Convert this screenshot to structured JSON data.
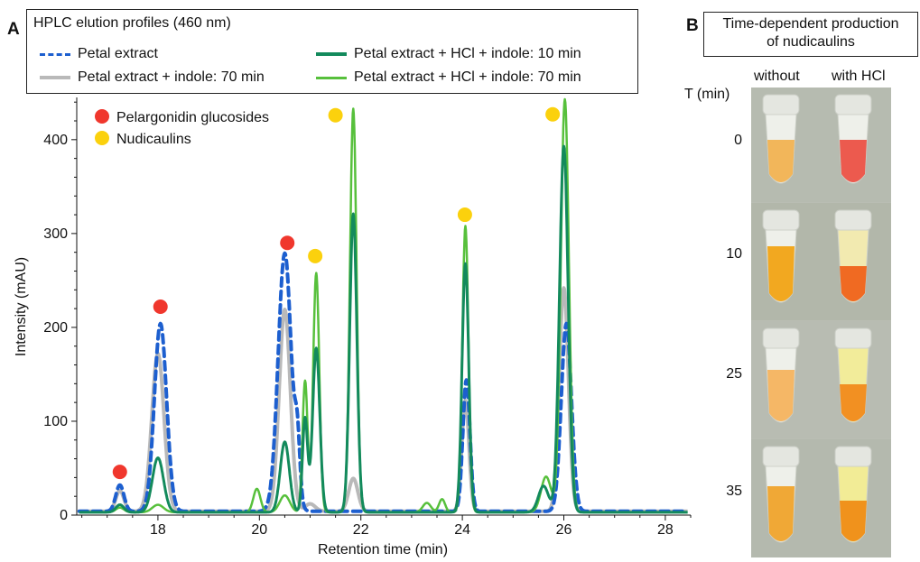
{
  "panel_a": {
    "letter": "A",
    "legend_title": "HPLC elution profiles (460 nm)",
    "legend": [
      {
        "label": "Petal extract",
        "color": "#1d5fcf",
        "dash": true
      },
      {
        "label": "Petal extract + indole: 70 min",
        "color": "#b9b9b9",
        "dash": false
      },
      {
        "label": "Petal extract + HCl + indole: 10 min",
        "color": "#138a5c",
        "dash": false
      },
      {
        "label": "Petal extract + HCl + indole: 70 min",
        "color": "#57c03c",
        "dash": false
      }
    ],
    "marker_legend": [
      {
        "label": "Pelargonidin glucosides",
        "color": "#f0372d"
      },
      {
        "label": "Nudicaulins",
        "color": "#fbd10d"
      }
    ]
  },
  "chart_data": {
    "type": "line",
    "xlabel": "Retention time (min)",
    "ylabel": "Intensity (mAU)",
    "xlim": [
      16.4,
      28.5
    ],
    "ylim": [
      0,
      445
    ],
    "xticks": [
      18,
      20,
      22,
      24,
      26,
      28
    ],
    "yticks": [
      0,
      100,
      200,
      300,
      400
    ],
    "grid": false,
    "series": [
      {
        "name": "Petal extract",
        "color": "#1d5fcf",
        "dash": true,
        "width": 4,
        "baseline": 4,
        "peaks": [
          [
            17.25,
            28,
            0.08
          ],
          [
            18.05,
            200,
            0.12
          ],
          [
            20.5,
            275,
            0.13
          ],
          [
            20.75,
            60,
            0.05
          ],
          [
            24.08,
            140,
            0.07
          ],
          [
            26.05,
            200,
            0.1
          ]
        ]
      },
      {
        "name": "Petal extract + indole: 70 min",
        "color": "#b9b9b9",
        "dash": false,
        "width": 4,
        "baseline": 4,
        "peaks": [
          [
            17.25,
            22,
            0.08
          ],
          [
            18.0,
            168,
            0.12
          ],
          [
            20.5,
            215,
            0.11
          ],
          [
            21.0,
            8,
            0.1
          ],
          [
            21.85,
            35,
            0.09
          ],
          [
            24.06,
            118,
            0.07
          ],
          [
            26.0,
            238,
            0.09
          ]
        ]
      },
      {
        "name": "Petal extract + HCl + indole: 10 min",
        "color": "#138a5c",
        "dash": false,
        "width": 3,
        "baseline": 3,
        "peaks": [
          [
            17.25,
            8,
            0.08
          ],
          [
            18.0,
            58,
            0.11
          ],
          [
            20.5,
            75,
            0.09
          ],
          [
            20.9,
            100,
            0.05
          ],
          [
            21.12,
            175,
            0.07
          ],
          [
            21.85,
            318,
            0.07
          ],
          [
            24.06,
            265,
            0.065
          ],
          [
            25.6,
            28,
            0.1
          ],
          [
            26.0,
            390,
            0.085
          ]
        ]
      },
      {
        "name": "Petal extract + HCl + indole: 70 min",
        "color": "#57c03c",
        "dash": false,
        "width": 2.5,
        "baseline": 3,
        "peaks": [
          [
            17.25,
            5,
            0.08
          ],
          [
            18.0,
            8,
            0.11
          ],
          [
            19.95,
            25,
            0.07
          ],
          [
            20.5,
            18,
            0.1
          ],
          [
            20.9,
            140,
            0.05
          ],
          [
            21.12,
            255,
            0.06
          ],
          [
            21.85,
            430,
            0.065
          ],
          [
            23.3,
            10,
            0.08
          ],
          [
            23.6,
            14,
            0.06
          ],
          [
            24.06,
            305,
            0.06
          ],
          [
            25.65,
            38,
            0.1
          ],
          [
            26.02,
            440,
            0.08
          ]
        ]
      }
    ],
    "markers": [
      {
        "x": 17.25,
        "y": 46,
        "kind": "Pelargonidin glucosides"
      },
      {
        "x": 18.05,
        "y": 222,
        "kind": "Pelargonidin glucosides"
      },
      {
        "x": 20.55,
        "y": 290,
        "kind": "Pelargonidin glucosides"
      },
      {
        "x": 21.1,
        "y": 276,
        "kind": "Nudicaulins"
      },
      {
        "x": 21.5,
        "y": 426,
        "kind": "Nudicaulins"
      },
      {
        "x": 24.05,
        "y": 320,
        "kind": "Nudicaulins"
      },
      {
        "x": 25.78,
        "y": 427,
        "kind": "Nudicaulins"
      }
    ]
  },
  "panel_b": {
    "letter": "B",
    "title_line1": "Time-dependent production",
    "title_line2": "of nudicaulins",
    "col_without": "without",
    "col_with": "with HCl",
    "row_header": "T (min)",
    "times": [
      "0",
      "10",
      "25",
      "35"
    ],
    "tube_colors": [
      {
        "without": "#f2b65a",
        "with": "#ec5a4e"
      },
      {
        "without": "#f2a820",
        "with": "#f06a22"
      },
      {
        "without": "#f5b766",
        "with": "#f29022"
      },
      {
        "without": "#f0a836",
        "with": "#f0921c"
      }
    ]
  }
}
